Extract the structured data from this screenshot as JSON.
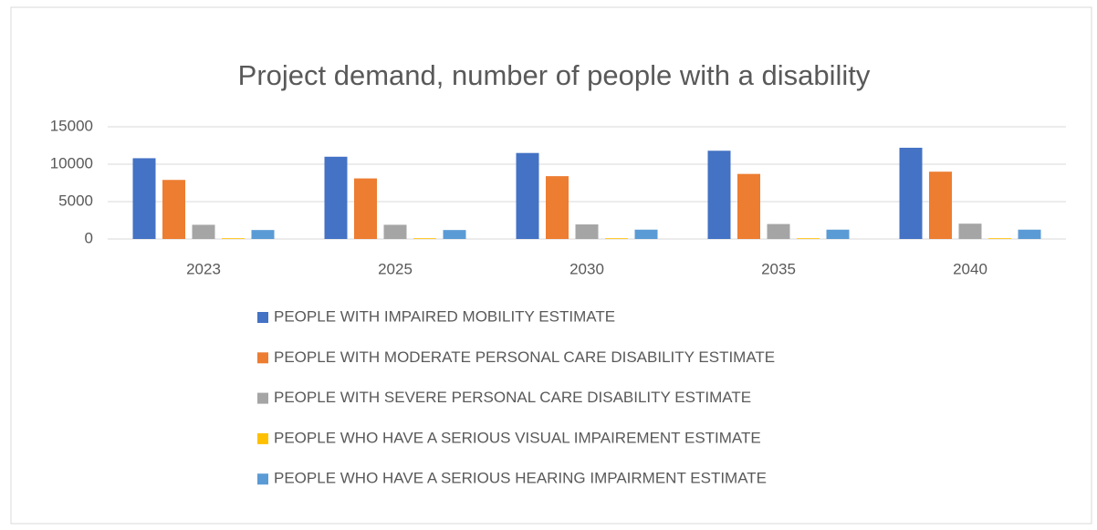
{
  "chart_data": {
    "type": "bar",
    "title": "Project demand, number of people with a disability",
    "categories": [
      "2023",
      "2025",
      "2030",
      "2035",
      "2040"
    ],
    "series": [
      {
        "name": "PEOPLE WITH IMPAIRED MOBILITY ESTIMATE",
        "color": "#4472c4",
        "values": [
          10800,
          11000,
          11500,
          11800,
          12200
        ]
      },
      {
        "name": "PEOPLE WITH MODERATE PERSONAL CARE DISABILITY ESTIMATE",
        "color": "#ed7d31",
        "values": [
          7900,
          8100,
          8400,
          8700,
          9000
        ]
      },
      {
        "name": "PEOPLE WITH SEVERE PERSONAL CARE DISABILITY ESTIMATE",
        "color": "#a5a5a5",
        "values": [
          1900,
          1900,
          1950,
          2000,
          2050
        ]
      },
      {
        "name": "PEOPLE WHO HAVE A SERIOUS VISUAL IMPAIREMENT ESTIMATE",
        "color": "#ffc000",
        "values": [
          100,
          100,
          100,
          100,
          100
        ]
      },
      {
        "name": "PEOPLE WHO HAVE A SERIOUS HEARING IMPAIRMENT ESTIMATE",
        "color": "#5b9bd5",
        "values": [
          1200,
          1200,
          1250,
          1250,
          1250
        ]
      }
    ],
    "ylim": [
      0,
      15000
    ],
    "yticks": [
      0,
      5000,
      10000,
      15000
    ],
    "grid": true,
    "legend": "bottom"
  }
}
